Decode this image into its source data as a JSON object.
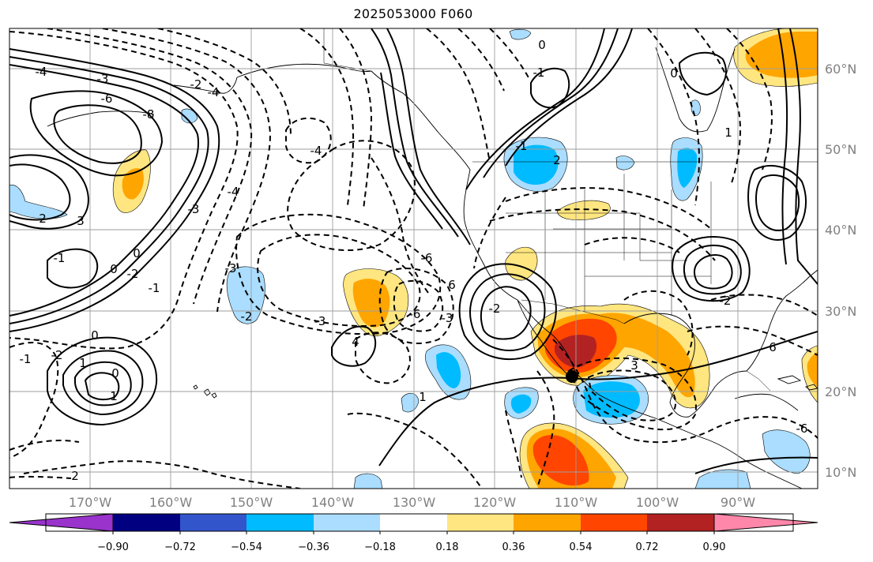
{
  "map": {
    "title": "2025053000 F060",
    "lon_labels": [
      "170°W",
      "160°W",
      "150°W",
      "140°W",
      "130°W",
      "120°W",
      "110°W",
      "100°W",
      "90°W"
    ],
    "lat_labels": [
      "60°N",
      "50°N",
      "40°N",
      "30°N",
      "20°N",
      "10°N"
    ],
    "contour_labels": [
      "-4",
      "-3",
      "-6",
      "-8",
      "-2",
      "-4",
      "-4",
      "-3",
      "-4",
      "0",
      "-3",
      "-2",
      "-2",
      "-1",
      "0",
      "1",
      "-1",
      "-2",
      "0",
      "1",
      "2",
      "3",
      "-1",
      "0",
      "4",
      "1",
      "2",
      "-3",
      "-6",
      "6",
      "-6",
      "-3",
      "-2",
      "-1",
      "0",
      "0",
      "1",
      "3",
      "6",
      "-6",
      "-2",
      "2",
      "-1"
    ]
  },
  "colorbar": {
    "labels": [
      "−0.90",
      "−0.72",
      "−0.54",
      "−0.36",
      "−0.18",
      "0.18",
      "0.36",
      "0.54",
      "0.72",
      "0.90"
    ],
    "colors": [
      "#9933cc",
      "#000080",
      "#3355cc",
      "#00bbff",
      "#aaddff",
      "#ffffff",
      "#ffe680",
      "#ffa500",
      "#ff4500",
      "#b22222",
      "#ff88aa"
    ]
  },
  "markers": {
    "point_color": "#000000"
  }
}
